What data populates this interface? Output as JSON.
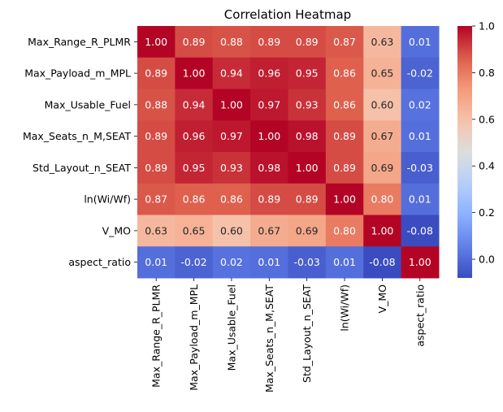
{
  "chart_data": {
    "type": "heatmap",
    "title": "Correlation Heatmap",
    "colormap": "coolwarm",
    "vmin": -0.08,
    "vmax": 1.0,
    "row_labels": [
      "Max_Range_R_PLMR",
      "Max_Payload_m_MPL",
      "Max_Usable_Fuel",
      "Max_Seats_n_M,SEAT",
      "Std_Layout_n_SEAT",
      "ln(Wi/Wf)",
      "V_MO",
      "aspect_ratio"
    ],
    "col_labels": [
      "Max_Range_R_PLMR",
      "Max_Payload_m_MPL",
      "Max_Usable_Fuel",
      "Max_Seats_n_M,SEAT",
      "Std_Layout_n_SEAT",
      "ln(Wi/Wf)",
      "V_MO",
      "aspect_ratio"
    ],
    "values": [
      [
        1.0,
        0.89,
        0.88,
        0.89,
        0.89,
        0.87,
        0.63,
        0.01
      ],
      [
        0.89,
        1.0,
        0.94,
        0.96,
        0.95,
        0.86,
        0.65,
        -0.02
      ],
      [
        0.88,
        0.94,
        1.0,
        0.97,
        0.93,
        0.86,
        0.6,
        0.02
      ],
      [
        0.89,
        0.96,
        0.97,
        1.0,
        0.98,
        0.89,
        0.67,
        0.01
      ],
      [
        0.89,
        0.95,
        0.93,
        0.98,
        1.0,
        0.89,
        0.69,
        -0.03
      ],
      [
        0.87,
        0.86,
        0.86,
        0.89,
        0.89,
        1.0,
        0.8,
        0.01
      ],
      [
        0.63,
        0.65,
        0.6,
        0.67,
        0.69,
        0.8,
        1.0,
        -0.08
      ],
      [
        0.01,
        -0.02,
        0.02,
        0.01,
        -0.03,
        0.01,
        -0.08,
        1.0
      ]
    ],
    "colorbar_ticks": [
      0.0,
      0.2,
      0.4,
      0.6,
      0.8,
      1.0
    ],
    "colorbar_tick_labels": [
      "0.0",
      "0.2",
      "0.4",
      "0.6",
      "0.8",
      "1.0"
    ]
  }
}
